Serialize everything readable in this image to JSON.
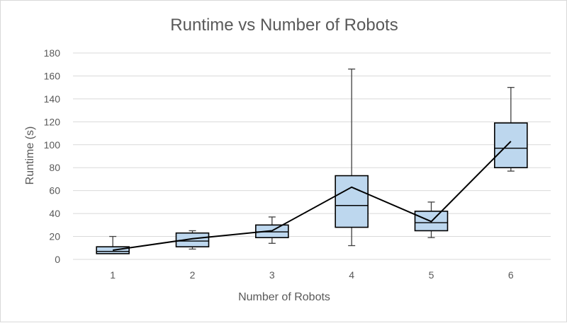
{
  "chart_data": {
    "type": "box",
    "title": "Runtime vs Number of Robots",
    "xlabel": "Number of Robots",
    "ylabel": "Runtime (s)",
    "categories": [
      "1",
      "2",
      "3",
      "4",
      "5",
      "6"
    ],
    "ylim": [
      0,
      180
    ],
    "yticks": [
      0,
      20,
      40,
      60,
      80,
      100,
      120,
      140,
      160,
      180
    ],
    "grid": true,
    "legend": "none",
    "box_color": "#bdd7ee",
    "boxes": [
      {
        "category": "1",
        "min": 5,
        "q1": 5,
        "median": 7,
        "q3": 11,
        "max": 20,
        "mean": 8
      },
      {
        "category": "2",
        "min": 9,
        "q1": 11,
        "median": 16,
        "q3": 23,
        "max": 25,
        "mean": 18
      },
      {
        "category": "3",
        "min": 14,
        "q1": 19,
        "median": 24,
        "q3": 30,
        "max": 37,
        "mean": 25
      },
      {
        "category": "4",
        "min": 12,
        "q1": 28,
        "median": 47,
        "q3": 73,
        "max": 166,
        "mean": 63
      },
      {
        "category": "5",
        "min": 19,
        "q1": 25,
        "median": 32,
        "q3": 42,
        "max": 50,
        "mean": 33
      },
      {
        "category": "6",
        "min": 77,
        "q1": 80,
        "median": 97,
        "q3": 119,
        "max": 150,
        "mean": 103
      }
    ]
  }
}
